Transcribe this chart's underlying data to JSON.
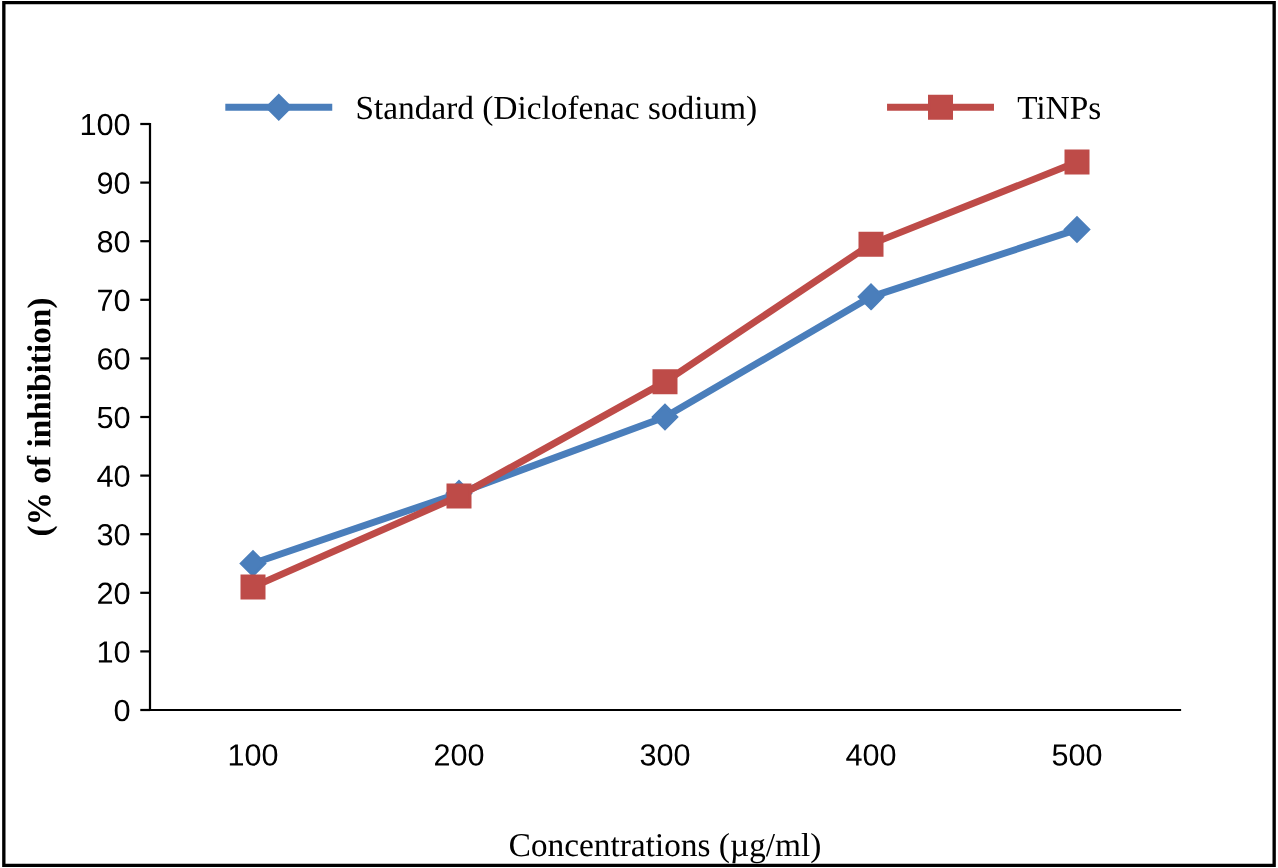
{
  "chart_data": {
    "type": "line",
    "xlabel": "Concentrations (µg/ml)",
    "ylabel": "(% of inhibition)",
    "categories": [
      "100",
      "200",
      "300",
      "400",
      "500"
    ],
    "series": [
      {
        "name": "Standard (Diclofenac sodium)",
        "color": "#4a7ebb",
        "values": [
          25,
          37,
          50,
          70.5,
          82
        ],
        "marker": "diamond"
      },
      {
        "name": "TiNPs",
        "color": "#be4b48",
        "values": [
          21,
          36.5,
          56,
          79.5,
          93.5
        ],
        "marker": "square"
      }
    ],
    "ylim": [
      0,
      100
    ],
    "yticks": [
      0,
      10,
      20,
      30,
      40,
      50,
      60,
      70,
      80,
      90,
      100
    ],
    "grid": false,
    "legend": "top",
    "line_style": "solid"
  }
}
